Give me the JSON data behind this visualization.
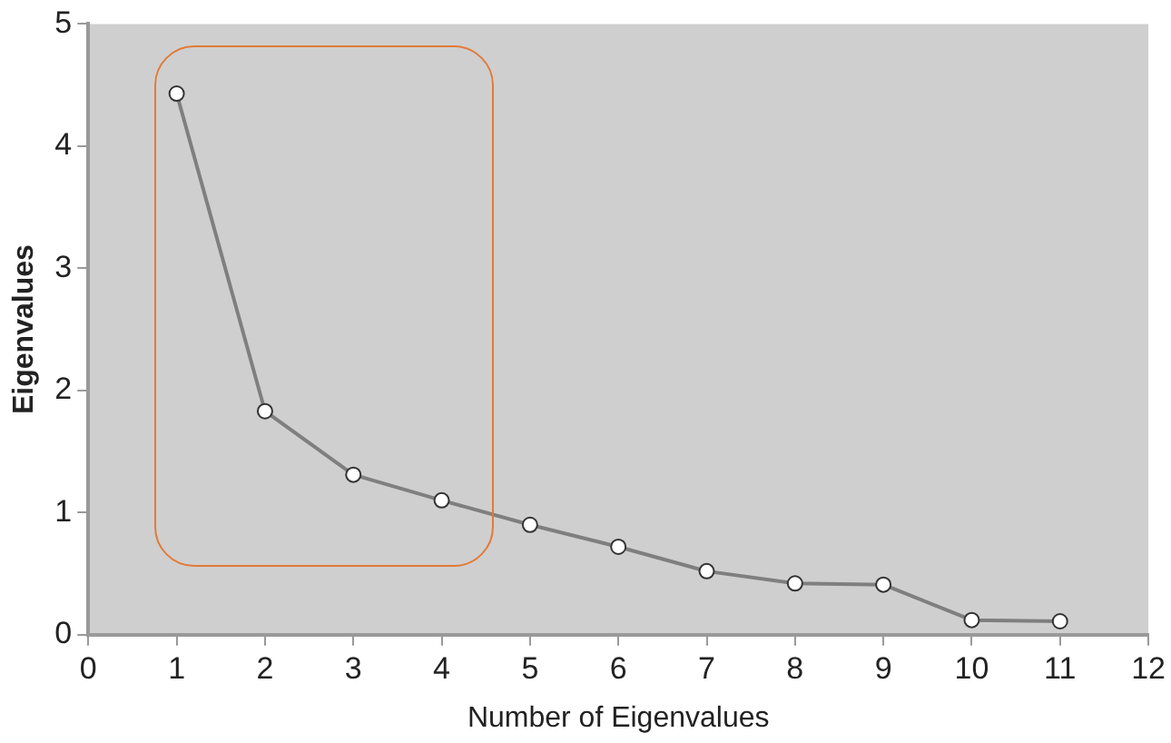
{
  "chart_data": {
    "type": "line",
    "xlabel": "Number of Eigenvalues",
    "ylabel": "Eigenvalues",
    "x": [
      1,
      2,
      3,
      4,
      5,
      6,
      7,
      8,
      9,
      10,
      11
    ],
    "series": [
      {
        "color": "#7f7f7f",
        "values": [
          4.43,
          1.83,
          1.31,
          1.1,
          0.9,
          0.72,
          0.52,
          0.42,
          0.41,
          0.12,
          0.11
        ]
      }
    ],
    "xlim": [
      0,
      12
    ],
    "xticks": [
      0,
      1,
      2,
      3,
      4,
      5,
      6,
      7,
      8,
      9,
      10,
      11,
      12
    ],
    "ylim": [
      0,
      5
    ],
    "yticks": [
      0,
      1,
      2,
      3,
      4,
      5
    ],
    "grid": false,
    "legend": false,
    "marker": "circle",
    "line_style": "solid"
  }
}
